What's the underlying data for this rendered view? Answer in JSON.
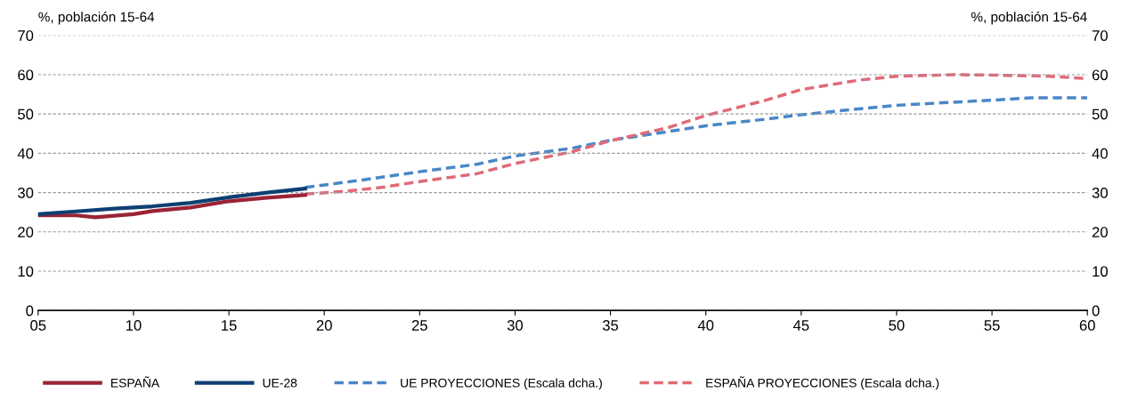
{
  "chart_data": {
    "type": "line",
    "ylabel": "%, población 15-64",
    "y2label": "%, población 15-64",
    "xlim": [
      2005,
      2060
    ],
    "xticks": [
      {
        "value": 2005,
        "label": "05"
      },
      {
        "value": 2010,
        "label": "10"
      },
      {
        "value": 2015,
        "label": "15"
      },
      {
        "value": 2020,
        "label": "20"
      },
      {
        "value": 2025,
        "label": "25"
      },
      {
        "value": 2030,
        "label": "30"
      },
      {
        "value": 2035,
        "label": "35"
      },
      {
        "value": 2040,
        "label": "40"
      },
      {
        "value": 2045,
        "label": "45"
      },
      {
        "value": 2050,
        "label": "50"
      },
      {
        "value": 2055,
        "label": "55"
      },
      {
        "value": 2060,
        "label": "60"
      }
    ],
    "ylim": [
      0,
      70
    ],
    "yticks": [
      0,
      10,
      20,
      30,
      40,
      50,
      60,
      70
    ],
    "y2lim": [
      0,
      70
    ],
    "y2ticks": [
      0,
      10,
      20,
      30,
      40,
      50,
      60,
      70
    ],
    "grid": "y",
    "legend": "bottom",
    "marker": "none",
    "series": [
      {
        "name": "ESPAÑA",
        "color": "#9b2335",
        "line_style": "solid",
        "x": [
          2005,
          2007,
          2008,
          2010,
          2011,
          2013,
          2015,
          2017,
          2019
        ],
        "values": [
          24.2,
          24.2,
          23.7,
          24.5,
          25.3,
          26.2,
          27.8,
          28.7,
          29.4
        ]
      },
      {
        "name": "UE-28",
        "color": "#0d3f73",
        "line_style": "solid",
        "x": [
          2005,
          2007,
          2009,
          2011,
          2013,
          2015,
          2017,
          2019
        ],
        "values": [
          24.5,
          25.2,
          25.9,
          26.5,
          27.4,
          28.8,
          30.0,
          31.0
        ]
      },
      {
        "name": "UE PROYECCIONES (Escala dcha.)",
        "color": "#4a87c8",
        "line_style": "dashed",
        "axis": "y2",
        "x": [
          2019,
          2022,
          2025,
          2028,
          2030,
          2033,
          2035,
          2038,
          2040,
          2043,
          2045,
          2048,
          2050,
          2053,
          2055,
          2057,
          2060
        ],
        "values": [
          31.3,
          33.2,
          35.3,
          37.2,
          39.3,
          41.3,
          43.3,
          45.5,
          47.0,
          48.6,
          49.8,
          51.3,
          52.2,
          53.0,
          53.5,
          54.1,
          54.1
        ]
      },
      {
        "name": "ESPAÑA PROYECCIONES (Escala dcha.)",
        "color": "#e06a78",
        "line_style": "dashed",
        "axis": "y2",
        "x": [
          2019,
          2021,
          2023,
          2025,
          2028,
          2030,
          2033,
          2035,
          2038,
          2040,
          2043,
          2045,
          2048,
          2050,
          2053,
          2055,
          2058,
          2060
        ],
        "values": [
          29.6,
          30.3,
          31.3,
          32.8,
          34.8,
          37.4,
          40.4,
          43.2,
          46.5,
          49.6,
          53.3,
          56.2,
          58.6,
          59.6,
          60.0,
          59.9,
          59.6,
          59.0
        ]
      }
    ]
  }
}
